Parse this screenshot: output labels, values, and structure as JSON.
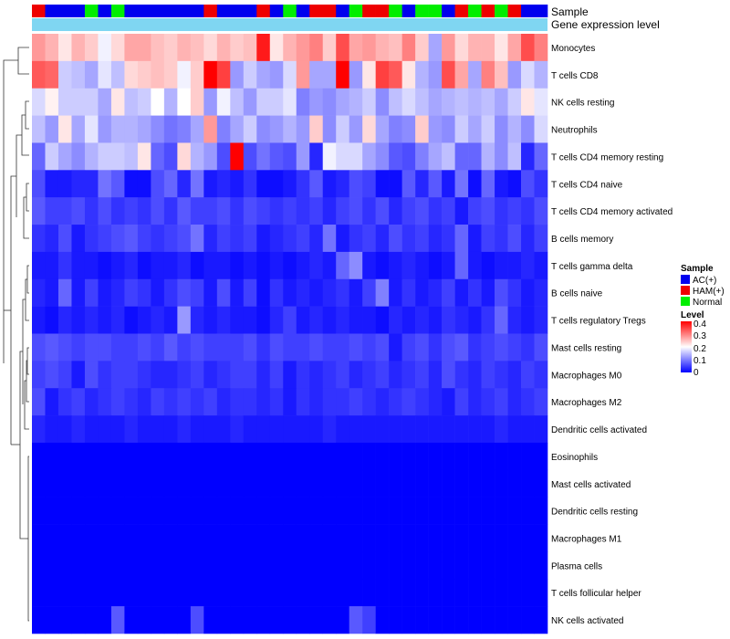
{
  "chart_data": {
    "type": "heatmap",
    "annotation_titles": {
      "sample": "Sample",
      "expression": "Gene expression level"
    },
    "legend": {
      "sample_title": "Sample",
      "groups": [
        {
          "label": "AC(+)",
          "color": "#0000ee"
        },
        {
          "label": "HAM(+)",
          "color": "#ee0000"
        },
        {
          "label": "Normal",
          "color": "#00ee00"
        }
      ],
      "level_title": "Level",
      "level_ticks": [
        "0.4",
        "0.3",
        "0.2",
        "0.1",
        "0"
      ],
      "level_range": [
        0,
        0.4
      ],
      "colors": {
        "low": "#0000ff",
        "mid": "#ffffff",
        "high": "#ff0000"
      }
    },
    "expression_bar_color": "#7fd6f2",
    "sample_groups": [
      "HAM(+)",
      "AC(+)",
      "AC(+)",
      "AC(+)",
      "Normal",
      "AC(+)",
      "Normal",
      "AC(+)",
      "AC(+)",
      "AC(+)",
      "AC(+)",
      "AC(+)",
      "AC(+)",
      "HAM(+)",
      "AC(+)",
      "AC(+)",
      "AC(+)",
      "HAM(+)",
      "AC(+)",
      "Normal",
      "AC(+)",
      "HAM(+)",
      "HAM(+)",
      "AC(+)",
      "Normal",
      "HAM(+)",
      "HAM(+)",
      "Normal",
      "AC(+)",
      "Normal",
      "Normal",
      "AC(+)",
      "HAM(+)",
      "Normal",
      "HAM(+)",
      "Normal",
      "HAM(+)",
      "AC(+)",
      "AC(+)"
    ],
    "rows": [
      {
        "name": "Monocytes",
        "values": [
          0.28,
          0.26,
          0.22,
          0.26,
          0.24,
          0.19,
          0.23,
          0.27,
          0.27,
          0.25,
          0.24,
          0.26,
          0.25,
          0.23,
          0.26,
          0.24,
          0.25,
          0.38,
          0.22,
          0.26,
          0.28,
          0.3,
          0.24,
          0.34,
          0.27,
          0.28,
          0.26,
          0.25,
          0.3,
          0.24,
          0.13,
          0.28,
          0.23,
          0.26,
          0.26,
          0.22,
          0.27,
          0.34,
          0.3
        ]
      },
      {
        "name": "T cells CD8",
        "values": [
          0.33,
          0.32,
          0.16,
          0.15,
          0.13,
          0.18,
          0.15,
          0.23,
          0.24,
          0.25,
          0.24,
          0.19,
          0.24,
          0.4,
          0.35,
          0.12,
          0.16,
          0.13,
          0.12,
          0.17,
          0.28,
          0.13,
          0.13,
          0.4,
          0.12,
          0.22,
          0.35,
          0.33,
          0.22,
          0.14,
          0.12,
          0.34,
          0.27,
          0.13,
          0.3,
          0.25,
          0.12,
          0.17,
          0.14
        ]
      },
      {
        "name": "NK cells resting",
        "values": [
          0.17,
          0.21,
          0.16,
          0.16,
          0.16,
          0.13,
          0.22,
          0.15,
          0.16,
          0.2,
          0.14,
          0.2,
          0.24,
          0.12,
          0.19,
          0.15,
          0.12,
          0.16,
          0.16,
          0.18,
          0.1,
          0.12,
          0.11,
          0.13,
          0.14,
          0.16,
          0.11,
          0.15,
          0.17,
          0.15,
          0.13,
          0.14,
          0.15,
          0.14,
          0.15,
          0.13,
          0.16,
          0.22,
          0.18
        ]
      },
      {
        "name": "Neutrophils",
        "values": [
          0.15,
          0.12,
          0.22,
          0.13,
          0.18,
          0.12,
          0.14,
          0.14,
          0.13,
          0.11,
          0.09,
          0.1,
          0.13,
          0.28,
          0.1,
          0.13,
          0.16,
          0.11,
          0.12,
          0.14,
          0.12,
          0.24,
          0.11,
          0.16,
          0.12,
          0.23,
          0.13,
          0.1,
          0.11,
          0.24,
          0.12,
          0.11,
          0.16,
          0.13,
          0.16,
          0.11,
          0.14,
          0.11,
          0.17
        ]
      },
      {
        "name": "T cells CD4 memory resting",
        "values": [
          0.08,
          0.16,
          0.13,
          0.11,
          0.14,
          0.16,
          0.16,
          0.15,
          0.22,
          0.08,
          0.06,
          0.23,
          0.14,
          0.12,
          0.06,
          0.4,
          0.06,
          0.09,
          0.07,
          0.06,
          0.12,
          0.03,
          0.19,
          0.17,
          0.17,
          0.13,
          0.11,
          0.07,
          0.06,
          0.1,
          0.13,
          0.15,
          0.08,
          0.08,
          0.14,
          0.11,
          0.15,
          0.03,
          0.08
        ]
      },
      {
        "name": "T cells CD4 naive",
        "values": [
          0.06,
          0.02,
          0.02,
          0.03,
          0.03,
          0.09,
          0.07,
          0.01,
          0.01,
          0.06,
          0.08,
          0.03,
          0.09,
          0.02,
          0.03,
          0.02,
          0.04,
          0.01,
          0.01,
          0.02,
          0.04,
          0.07,
          0.02,
          0.03,
          0.06,
          0.05,
          0.01,
          0.01,
          0.07,
          0.03,
          0.07,
          0.02,
          0.09,
          0.01,
          0.08,
          0.02,
          0.01,
          0.06,
          0.04
        ]
      },
      {
        "name": "T cells CD4 memory activated",
        "values": [
          0.07,
          0.05,
          0.05,
          0.06,
          0.04,
          0.06,
          0.04,
          0.05,
          0.04,
          0.06,
          0.04,
          0.07,
          0.05,
          0.05,
          0.06,
          0.04,
          0.06,
          0.05,
          0.04,
          0.05,
          0.04,
          0.05,
          0.03,
          0.05,
          0.06,
          0.04,
          0.06,
          0.03,
          0.05,
          0.06,
          0.04,
          0.05,
          0.02,
          0.05,
          0.06,
          0.04,
          0.05,
          0.04,
          0.06
        ]
      },
      {
        "name": "B cells memory",
        "values": [
          0.04,
          0.03,
          0.06,
          0.02,
          0.04,
          0.05,
          0.06,
          0.07,
          0.05,
          0.04,
          0.05,
          0.06,
          0.09,
          0.03,
          0.05,
          0.04,
          0.05,
          0.02,
          0.03,
          0.04,
          0.05,
          0.03,
          0.09,
          0.02,
          0.04,
          0.05,
          0.03,
          0.06,
          0.04,
          0.05,
          0.03,
          0.04,
          0.08,
          0.02,
          0.05,
          0.04,
          0.06,
          0.03,
          0.05
        ]
      },
      {
        "name": "T cells gamma delta",
        "values": [
          0.02,
          0.02,
          0.04,
          0.02,
          0.02,
          0.01,
          0.02,
          0.03,
          0.01,
          0.02,
          0.02,
          0.03,
          0.01,
          0.02,
          0.02,
          0.01,
          0.02,
          0.01,
          0.02,
          0.01,
          0.02,
          0.03,
          0.02,
          0.08,
          0.11,
          0.02,
          0.01,
          0.02,
          0.03,
          0.02,
          0.01,
          0.02,
          0.08,
          0.02,
          0.01,
          0.02,
          0.02,
          0.03,
          0.02
        ]
      },
      {
        "name": "B cells naive",
        "values": [
          0.03,
          0.02,
          0.08,
          0.02,
          0.05,
          0.02,
          0.03,
          0.05,
          0.04,
          0.02,
          0.04,
          0.06,
          0.05,
          0.02,
          0.06,
          0.02,
          0.05,
          0.01,
          0.04,
          0.02,
          0.03,
          0.02,
          0.03,
          0.04,
          0.02,
          0.05,
          0.1,
          0.02,
          0.04,
          0.02,
          0.03,
          0.05,
          0.02,
          0.04,
          0.02,
          0.06,
          0.04,
          0.02,
          0.03
        ]
      },
      {
        "name": "T cells regulatory  Tregs",
        "values": [
          0.02,
          0.01,
          0.03,
          0.02,
          0.03,
          0.02,
          0.03,
          0.01,
          0.02,
          0.03,
          0.02,
          0.12,
          0.03,
          0.02,
          0.03,
          0.02,
          0.02,
          0.01,
          0.03,
          0.05,
          0.02,
          0.03,
          0.02,
          0.03,
          0.02,
          0.02,
          0.01,
          0.03,
          0.02,
          0.03,
          0.02,
          0.04,
          0.03,
          0.02,
          0.04,
          0.08,
          0.03,
          0.02,
          0.03
        ]
      },
      {
        "name": "Mast cells resting",
        "values": [
          0.06,
          0.07,
          0.06,
          0.05,
          0.06,
          0.06,
          0.05,
          0.05,
          0.06,
          0.05,
          0.07,
          0.05,
          0.06,
          0.05,
          0.05,
          0.05,
          0.06,
          0.04,
          0.06,
          0.05,
          0.05,
          0.06,
          0.05,
          0.05,
          0.06,
          0.05,
          0.06,
          0.02,
          0.05,
          0.06,
          0.04,
          0.06,
          0.07,
          0.04,
          0.05,
          0.06,
          0.05,
          0.04,
          0.06
        ]
      },
      {
        "name": "Macrophages M0",
        "values": [
          0.05,
          0.06,
          0.05,
          0.02,
          0.06,
          0.04,
          0.05,
          0.05,
          0.04,
          0.03,
          0.03,
          0.04,
          0.05,
          0.03,
          0.04,
          0.05,
          0.05,
          0.03,
          0.05,
          0.02,
          0.04,
          0.03,
          0.04,
          0.05,
          0.03,
          0.04,
          0.05,
          0.03,
          0.04,
          0.05,
          0.03,
          0.06,
          0.04,
          0.03,
          0.05,
          0.04,
          0.03,
          0.05,
          0.04
        ]
      },
      {
        "name": "Macrophages M2",
        "values": [
          0.06,
          0.02,
          0.04,
          0.05,
          0.03,
          0.04,
          0.05,
          0.04,
          0.03,
          0.05,
          0.04,
          0.05,
          0.04,
          0.05,
          0.03,
          0.04,
          0.04,
          0.03,
          0.04,
          0.02,
          0.04,
          0.03,
          0.04,
          0.04,
          0.05,
          0.04,
          0.03,
          0.04,
          0.05,
          0.04,
          0.03,
          0.02,
          0.05,
          0.03,
          0.04,
          0.05,
          0.03,
          0.04,
          0.05
        ]
      },
      {
        "name": "Dendritic cells activated",
        "values": [
          0.03,
          0.02,
          0.02,
          0.03,
          0.02,
          0.02,
          0.02,
          0.03,
          0.02,
          0.02,
          0.02,
          0.03,
          0.02,
          0.02,
          0.02,
          0.03,
          0.02,
          0.02,
          0.02,
          0.02,
          0.02,
          0.02,
          0.03,
          0.02,
          0.02,
          0.02,
          0.02,
          0.02,
          0.02,
          0.02,
          0.02,
          0.02,
          0.02,
          0.02,
          0.02,
          0.03,
          0.02,
          0.02,
          0.02
        ]
      },
      {
        "name": "Eosinophils",
        "values": [
          0,
          0,
          0,
          0,
          0,
          0,
          0,
          0,
          0,
          0,
          0,
          0,
          0,
          0,
          0,
          0,
          0,
          0,
          0,
          0,
          0,
          0,
          0,
          0,
          0,
          0,
          0,
          0,
          0,
          0,
          0,
          0,
          0,
          0,
          0,
          0,
          0,
          0,
          0
        ]
      },
      {
        "name": "Mast cells activated",
        "values": [
          0,
          0,
          0,
          0,
          0,
          0,
          0,
          0,
          0,
          0,
          0,
          0,
          0,
          0,
          0,
          0,
          0,
          0,
          0,
          0,
          0,
          0,
          0,
          0,
          0,
          0,
          0,
          0,
          0,
          0,
          0,
          0,
          0,
          0,
          0,
          0,
          0,
          0,
          0
        ]
      },
      {
        "name": "Dendritic cells resting",
        "values": [
          0,
          0,
          0,
          0,
          0,
          0,
          0,
          0,
          0,
          0,
          0,
          0,
          0,
          0,
          0,
          0,
          0,
          0,
          0,
          0,
          0,
          0,
          0,
          0,
          0,
          0,
          0,
          0,
          0,
          0,
          0,
          0,
          0,
          0,
          0,
          0,
          0,
          0,
          0
        ]
      },
      {
        "name": "Macrophages M1",
        "values": [
          0,
          0,
          0,
          0,
          0,
          0,
          0,
          0,
          0,
          0,
          0,
          0,
          0,
          0,
          0,
          0,
          0,
          0,
          0,
          0,
          0,
          0,
          0,
          0,
          0,
          0,
          0,
          0,
          0,
          0,
          0,
          0,
          0,
          0,
          0,
          0,
          0,
          0,
          0
        ]
      },
      {
        "name": "Plasma cells",
        "values": [
          0,
          0,
          0,
          0,
          0,
          0,
          0,
          0,
          0,
          0,
          0,
          0,
          0,
          0,
          0,
          0,
          0,
          0,
          0,
          0,
          0,
          0,
          0,
          0,
          0,
          0,
          0,
          0,
          0,
          0,
          0,
          0,
          0,
          0,
          0,
          0,
          0,
          0,
          0
        ]
      },
      {
        "name": "T cells follicular helper",
        "values": [
          0,
          0,
          0,
          0,
          0,
          0,
          0,
          0,
          0,
          0,
          0,
          0,
          0,
          0,
          0,
          0,
          0,
          0,
          0,
          0,
          0,
          0,
          0,
          0,
          0,
          0,
          0,
          0,
          0,
          0,
          0,
          0,
          0,
          0,
          0,
          0,
          0,
          0,
          0
        ]
      },
      {
        "name": "NK cells activated",
        "values": [
          0,
          0,
          0,
          0,
          0,
          0,
          0.07,
          0,
          0,
          0,
          0,
          0,
          0.06,
          0,
          0,
          0,
          0,
          0,
          0,
          0,
          0,
          0,
          0,
          0,
          0.07,
          0.05,
          0,
          0,
          0,
          0,
          0,
          0,
          0,
          0,
          0,
          0,
          0,
          0,
          0
        ]
      }
    ]
  }
}
